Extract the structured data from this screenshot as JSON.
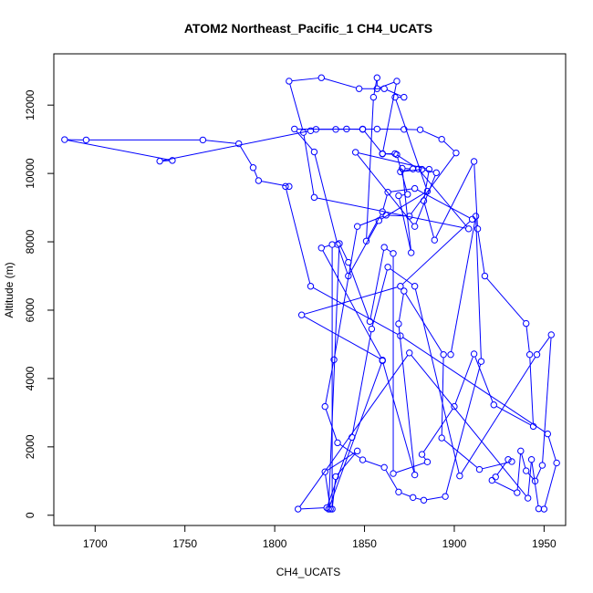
{
  "chart_data": {
    "type": "line",
    "title": "ATOM2 Northeast_Pacific_1 CH4_UCATS",
    "xlabel": "CH4_UCATS",
    "ylabel": "Altitude (m)",
    "xlim": [
      1677,
      1962
    ],
    "ylim": [
      -300,
      13500
    ],
    "x_ticks": [
      "1700",
      "1750",
      "1800",
      "1850",
      "1900",
      "1950"
    ],
    "y_ticks": [
      "0",
      "2000",
      "4000",
      "6000",
      "8000",
      "10000",
      "12000"
    ],
    "grid": false,
    "legend": "none",
    "series_color": "#0000ff",
    "series": [
      {
        "x": [
          1831,
          1828,
          1846,
          1834,
          1832,
          1832,
          1826,
          1860,
          1815,
          1870,
          1910,
          1878,
          1863,
          1860,
          1851,
          1855,
          1857,
          1857,
          1868,
          1860,
          1867,
          1880,
          1908,
          1822,
          1816,
          1808,
          1826,
          1847,
          1861,
          1872,
          1867,
          1885,
          1858,
          1841,
          1835,
          1822,
          1811,
          1834,
          1849,
          1860,
          1868,
          1874,
          1869,
          1876,
          1871,
          1877,
          1870,
          1882,
          1890,
          1878,
          1845,
          1886,
          1883,
          1889,
          1911,
          1913,
          1917,
          1940,
          1942,
          1944,
          1922,
          1911,
          1900,
          1882,
          1885,
          1866,
          1866,
          1861,
          1853,
          1841,
          1836,
          1830,
          1860,
          1878,
          1869,
          1872,
          1894,
          1893,
          1914,
          1932,
          1930,
          1923,
          1921,
          1935,
          1937,
          1940,
          1945,
          1949,
          1954,
          1946,
          1903,
          1878,
          1863,
          1854,
          1843,
          1829,
          1813,
          1875,
          1941,
          1943,
          1947,
          1950,
          1957,
          1952,
          1870,
          1820,
          1806,
          1808,
          1791,
          1788,
          1780,
          1760,
          1695,
          1683,
          1743,
          1736,
          1820,
          1823,
          1840,
          1849,
          1857,
          1872,
          1881,
          1893,
          1901,
          1875,
          1862,
          1846,
          1833,
          1828,
          1835,
          1849,
          1861,
          1869,
          1877,
          1883,
          1895,
          1915,
          1912,
          1898
        ],
        "y": [
          180,
          1270,
          1880,
          1130,
          180,
          7920,
          7820,
          4540,
          5860,
          6700,
          8660,
          9560,
          9450,
          8880,
          8020,
          12230,
          12800,
          12480,
          12700,
          10570,
          10580,
          10130,
          8380,
          9300,
          11200,
          12700,
          12800,
          12480,
          12480,
          12230,
          12230,
          9480,
          8620,
          7000,
          7920,
          10630,
          11300,
          11290,
          11300,
          10580,
          10550,
          9390,
          9350,
          7680,
          10150,
          10130,
          10050,
          10120,
          10020,
          8450,
          10620,
          10120,
          9200,
          8050,
          10350,
          8380,
          7000,
          5610,
          4700,
          2600,
          3230,
          4720,
          3180,
          1780,
          1560,
          1220,
          7660,
          7840,
          5670,
          7400,
          7950,
          180,
          4520,
          1180,
          5600,
          6560,
          4700,
          2260,
          1340,
          1570,
          1630,
          1120,
          1020,
          660,
          1880,
          1300,
          1000,
          1460,
          5280,
          4700,
          1150,
          6700,
          7260,
          5450,
          2280,
          220,
          180,
          4750,
          500,
          1630,
          190,
          180,
          1530,
          2380,
          5250,
          6700,
          9620,
          9620,
          9790,
          10170,
          10870,
          10980,
          10980,
          10990,
          10380,
          10360,
          11250,
          11290,
          11300,
          11290,
          11300,
          11290,
          11280,
          11000,
          10600,
          8750,
          8780,
          8450,
          4550,
          3180,
          2120,
          1620,
          1400,
          680,
          520,
          440,
          550,
          4500,
          8750,
          4700
        ]
      }
    ]
  }
}
